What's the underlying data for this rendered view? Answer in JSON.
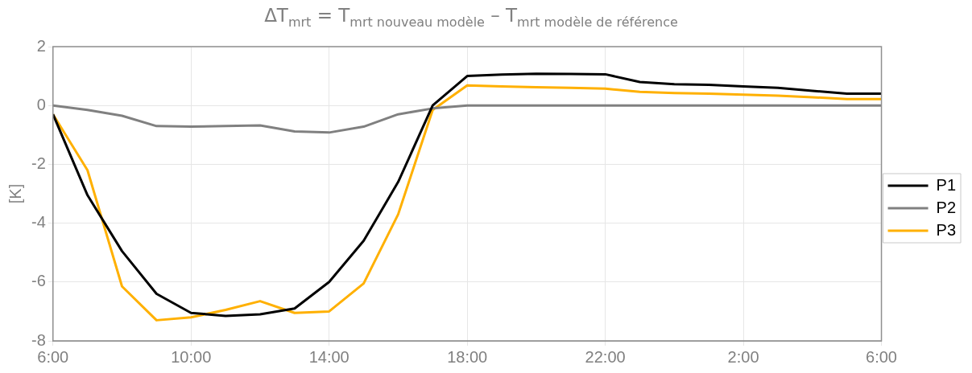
{
  "chart_data": {
    "type": "line",
    "title": "ΔT$_{mrt}$ = T$_{mrt nouveau modèle}$ – T$_{mrt modèle de référence}$",
    "ylabel": "[K]",
    "x": [
      "--01-01T06:00",
      "--01-01T07:00",
      "--01-01T08:00",
      "--01-01T09:00",
      "--01-01T10:00",
      "--01-01T11:00",
      "--01-01T12:00",
      "--01-01T13:00",
      "--01-01T14:00",
      "--01-01T15:00",
      "--01-01T16:00",
      "--01-01T17:00",
      "--01-01T18:00",
      "--01-01T19:00",
      "--01-01T20:00",
      "--01-01T21:00",
      "--01-01T22:00",
      "--01-01T23:00",
      "--01-02T00:00",
      "--01-02T01:00",
      "--01-02T02:00",
      "--01-02T03:00",
      "--01-02T04:00",
      "--01-02T05:00",
      "--01-02T06:00"
    ],
    "series": [
      {
        "name": "P1",
        "color": "#000000",
        "values": [
          -0.3,
          -3.05,
          -4.95,
          -6.4,
          -7.05,
          -7.15,
          -7.1,
          -6.9,
          -6.0,
          -4.6,
          -2.6,
          0.0,
          1.0,
          1.05,
          1.08,
          1.07,
          1.06,
          0.8,
          0.72,
          0.7,
          0.65,
          0.6,
          0.5,
          0.4,
          0.4
        ]
      },
      {
        "name": "P2",
        "color": "#808080",
        "values": [
          0,
          -0.15,
          -0.35,
          -0.7,
          -0.72,
          -0.7,
          -0.68,
          -0.88,
          -0.92,
          -0.72,
          -0.3,
          -0.1,
          0,
          0,
          0,
          0,
          0,
          0,
          0,
          0,
          0,
          0,
          0,
          0,
          0
        ]
      },
      {
        "name": "P3",
        "color": "#ffb000",
        "values": [
          -0.3,
          -2.2,
          -6.15,
          -7.3,
          -7.2,
          -6.95,
          -6.65,
          -7.05,
          -7.0,
          -6.05,
          -3.7,
          -0.15,
          0.68,
          0.65,
          0.62,
          0.6,
          0.57,
          0.46,
          0.42,
          0.4,
          0.37,
          0.33,
          0.28,
          0.22,
          0.22
        ]
      }
    ],
    "xlim": [
      "--01-01T06:00",
      "--01-02T06:00"
    ],
    "xticks": [
      {
        "value": "--01-01T06:00",
        "label": "6:00"
      },
      {
        "value": "--01-01T10:00",
        "label": "10:00"
      },
      {
        "value": "--01-01T14:00",
        "label": "14:00"
      },
      {
        "value": "--01-01T18:00",
        "label": "18:00"
      },
      {
        "value": "--01-01T22:00",
        "label": "22:00"
      },
      {
        "value": "--01-02T02:00",
        "label": "2:00"
      },
      {
        "value": "--01-02T06:00",
        "label": "6:00"
      }
    ],
    "ylim": [
      -8,
      2
    ],
    "yticks": [
      -8,
      -6,
      -4,
      -2,
      0,
      2
    ],
    "grid": true,
    "legend": "right",
    "marker": "none",
    "line_style": "solid"
  }
}
